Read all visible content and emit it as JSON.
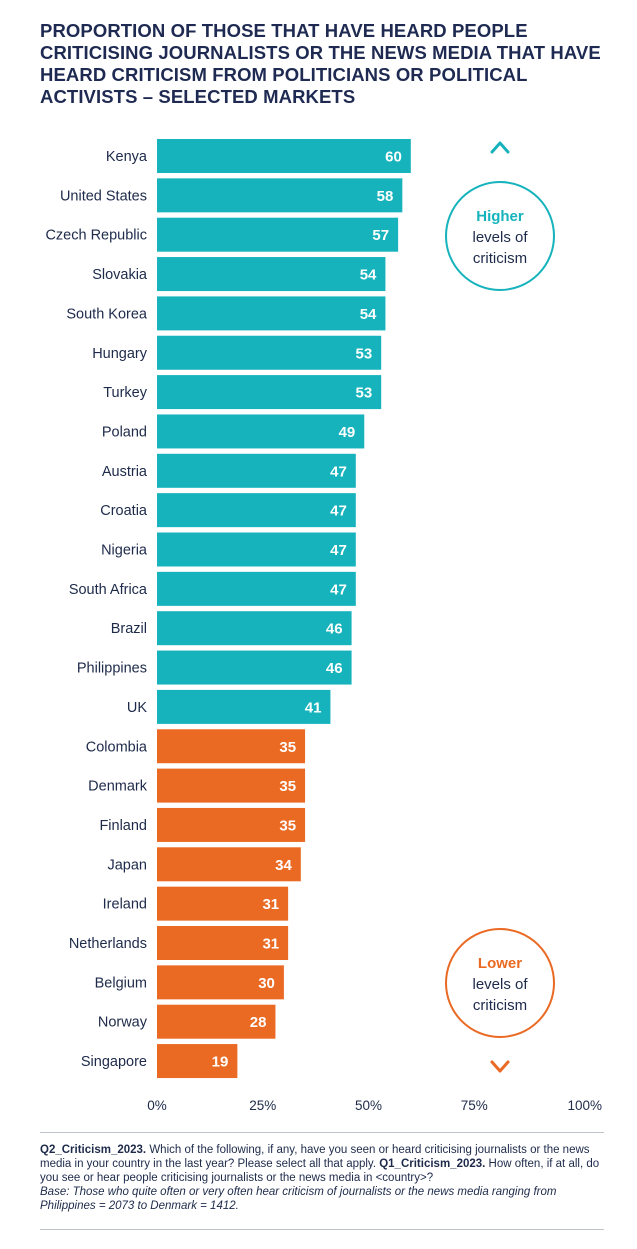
{
  "title": "PROPORTION OF THOSE THAT HAVE HEARD PEOPLE CRITICISING JOURNALISTS OR THE NEWS MEDIA THAT HAVE HEARD CRITICISM FROM POLITICIANS OR POLITICAL ACTIVISTS – SELECTED MARKETS",
  "colors": {
    "high": "#16b3bc",
    "low": "#ea6a23",
    "text": "#1d2a4a"
  },
  "chart_data": {
    "type": "bar",
    "orientation": "horizontal",
    "categories": [
      "Kenya",
      "United States",
      "Czech Republic",
      "Slovakia",
      "South Korea",
      "Hungary",
      "Turkey",
      "Poland",
      "Austria",
      "Croatia",
      "Nigeria",
      "South Africa",
      "Brazil",
      "Philippines",
      "UK",
      "Colombia",
      "Denmark",
      "Finland",
      "Japan",
      "Ireland",
      "Netherlands",
      "Belgium",
      "Norway",
      "Singapore"
    ],
    "values": [
      60,
      58,
      57,
      54,
      54,
      53,
      53,
      49,
      47,
      47,
      47,
      47,
      46,
      46,
      41,
      35,
      35,
      35,
      34,
      31,
      31,
      30,
      28,
      19
    ],
    "groups": [
      "high",
      "high",
      "high",
      "high",
      "high",
      "high",
      "high",
      "high",
      "high",
      "high",
      "high",
      "high",
      "high",
      "high",
      "high",
      "low",
      "low",
      "low",
      "low",
      "low",
      "low",
      "low",
      "low",
      "low"
    ],
    "xlim": [
      0,
      100
    ],
    "x_ticks": [
      "0%",
      "25%",
      "50%",
      "75%",
      "100%"
    ],
    "grid": false,
    "annotations": {
      "top": {
        "emphasis": "Higher",
        "line2": "levels of",
        "line3": "criticism"
      },
      "bottom": {
        "emphasis": "Lower",
        "line2": "levels of",
        "line3": "criticism"
      }
    }
  },
  "footnote": {
    "q2_label": "Q2_Criticism_2023.",
    "q2_text": " Which of the following, if any, have you seen or heard criticising journalists or the news media in your country in the last year? Please select all that apply. ",
    "q1_label": "Q1_Criticism_2023.",
    "q1_text": " How often, if at all, do you see or hear people criticising journalists or the news media in <country>?",
    "base": "Base: Those who quite often or very often hear criticism of journalists or the news media ranging from Philippines = 2073 to Denmark = 1412."
  }
}
